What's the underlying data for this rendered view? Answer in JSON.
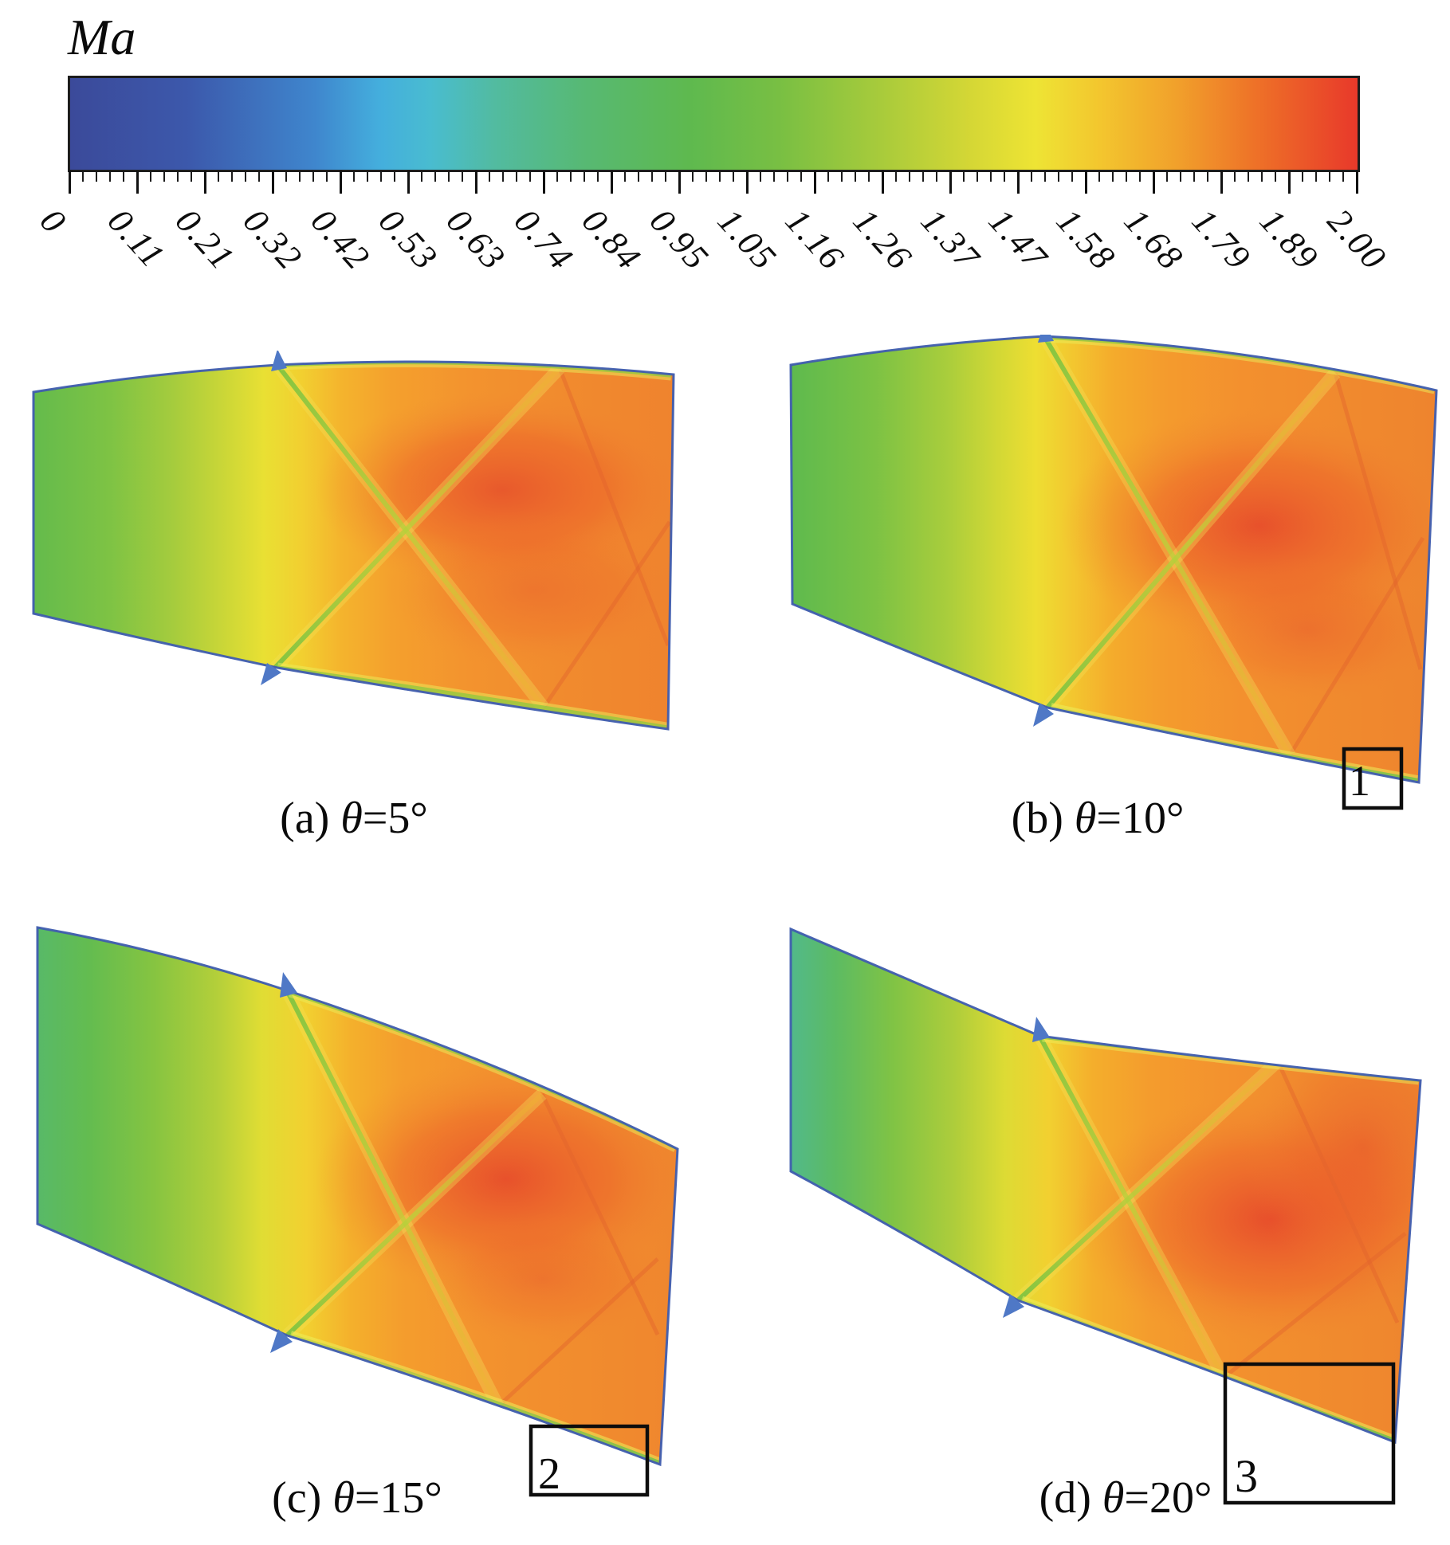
{
  "figure": {
    "colorbar": {
      "title": "Ma",
      "tick_labels": [
        "0",
        "0.11",
        "0.21",
        "0.32",
        "0.42",
        "0.53",
        "0.63",
        "0.74",
        "0.84",
        "0.95",
        "1.05",
        "1.16",
        "1.26",
        "1.37",
        "1.47",
        "1.58",
        "1.68",
        "1.79",
        "1.89",
        "2.00"
      ]
    },
    "panels": [
      {
        "prefix": "(a) ",
        "theta": "θ",
        "suffix": "=5°",
        "box_label": ""
      },
      {
        "prefix": "(b) ",
        "theta": "θ",
        "suffix": "=10°",
        "box_label": "1"
      },
      {
        "prefix": "(c) ",
        "theta": "θ",
        "suffix": "=15°",
        "box_label": "2"
      },
      {
        "prefix": "(d) ",
        "theta": "θ",
        "suffix": "=20°",
        "box_label": "3"
      }
    ]
  },
  "chart_data": {
    "type": "heatmap",
    "variable": "Ma",
    "title": "Ma",
    "colorbar": {
      "label": "Ma",
      "min": 0,
      "max": 2.0,
      "ticks": [
        0,
        0.11,
        0.21,
        0.32,
        0.42,
        0.53,
        0.63,
        0.74,
        0.84,
        0.95,
        1.05,
        1.16,
        1.26,
        1.37,
        1.47,
        1.58,
        1.68,
        1.79,
        1.89,
        2.0
      ],
      "gradient_colors": [
        "#3b4a9a",
        "#3c58ab",
        "#3f86cd",
        "#44aedd",
        "#49bcd0",
        "#52bba0",
        "#57b973",
        "#5eb94f",
        "#78bf43",
        "#a8cb3b",
        "#d5d735",
        "#eee434",
        "#f3c62e",
        "#f1a02b",
        "#ee7228",
        "#e8392a"
      ],
      "orientation": "horizontal"
    },
    "panels": [
      {
        "label": "(a) θ=5°",
        "theta_deg": 5,
        "annotation_box_label": null,
        "estimated_field": "inlet Ma ≈ 0.95-1.05 (green), mid yellow band Ma ≈ 1.35, post-shock orange Ma ≈ 1.5, red core Ma ≈ 1.75, crossing oblique shocks from upper and lower wall notches"
      },
      {
        "label": "(b) θ=10°",
        "theta_deg": 10,
        "annotation_box_label": "1",
        "estimated_field": "inlet Ma ≈ 0.95-1.05 (green), larger red supersonic core Ma ≈ 1.8 upper right, shock X-crossing near mid-passage, annotated region 1 at lower-right wall"
      },
      {
        "label": "(c) θ=15°",
        "theta_deg": 15,
        "annotation_box_label": "2",
        "estimated_field": "inlet Ma ≈ 0.95 (green), red core Ma ≈ 1.8 right of shock crossing, stronger wall deflection, annotated region 2 at lower-right wall"
      },
      {
        "label": "(d) θ=20°",
        "theta_deg": 20,
        "annotation_box_label": "3",
        "estimated_field": "inlet Ma ≈ 0.85-0.95 (teal-green), red core Ma ≈ 1.8-1.9, steepest wall deflection, annotated region 3 at lower-right wall"
      }
    ]
  }
}
